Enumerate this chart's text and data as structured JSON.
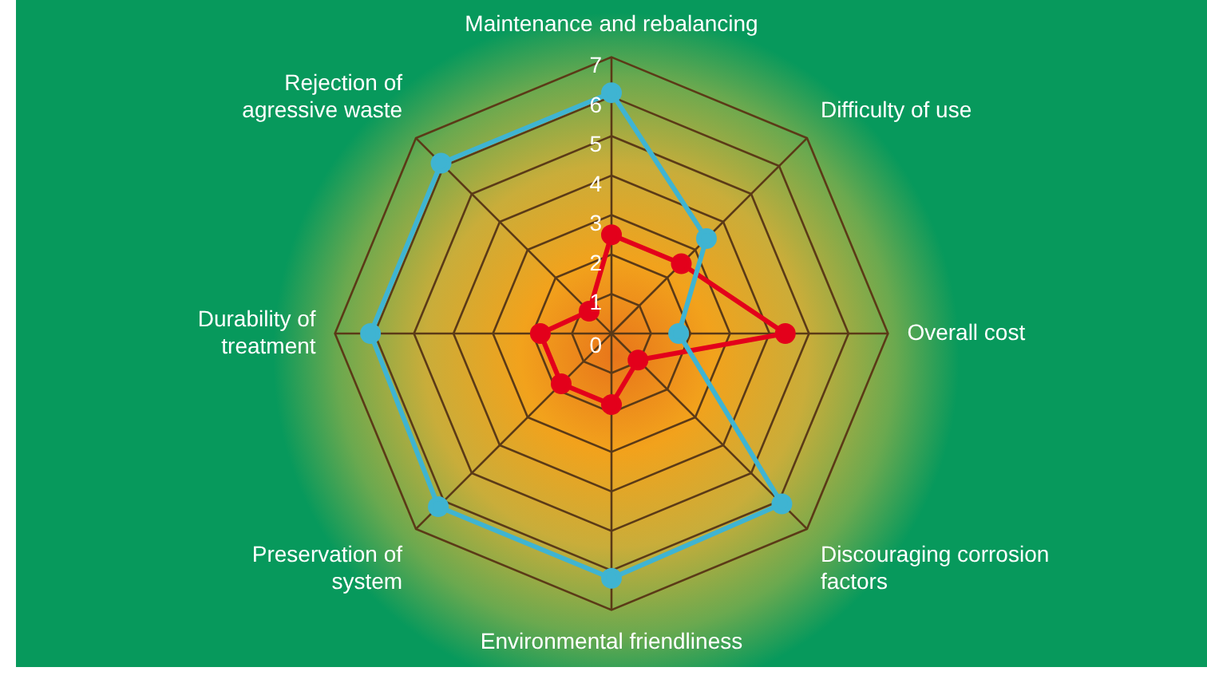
{
  "chart_data": {
    "type": "radar",
    "categories": [
      "Maintenance and rebalancing",
      "Difficulty of use",
      "Overall cost",
      "Discouraging corrosion\nfactors",
      "Environmental friendliness",
      "Preservation of\nsystem",
      "Durability of\ntreatment",
      "Rejection of\nagressive waste"
    ],
    "series": [
      {
        "color": "#3fb4d2",
        "values": [
          6.1,
          3.4,
          1.7,
          6.1,
          6.2,
          6.2,
          6.1,
          6.1
        ]
      },
      {
        "color": "#e3001b",
        "values": [
          2.5,
          2.5,
          4.4,
          0.95,
          1.8,
          1.8,
          1.8,
          0.8
        ]
      }
    ],
    "ylim": [
      0,
      7
    ],
    "yticks": [
      0,
      1,
      2,
      3,
      4,
      5,
      6,
      7
    ],
    "grid": true,
    "legend": false,
    "marker": "circle",
    "line_style": "solid"
  }
}
